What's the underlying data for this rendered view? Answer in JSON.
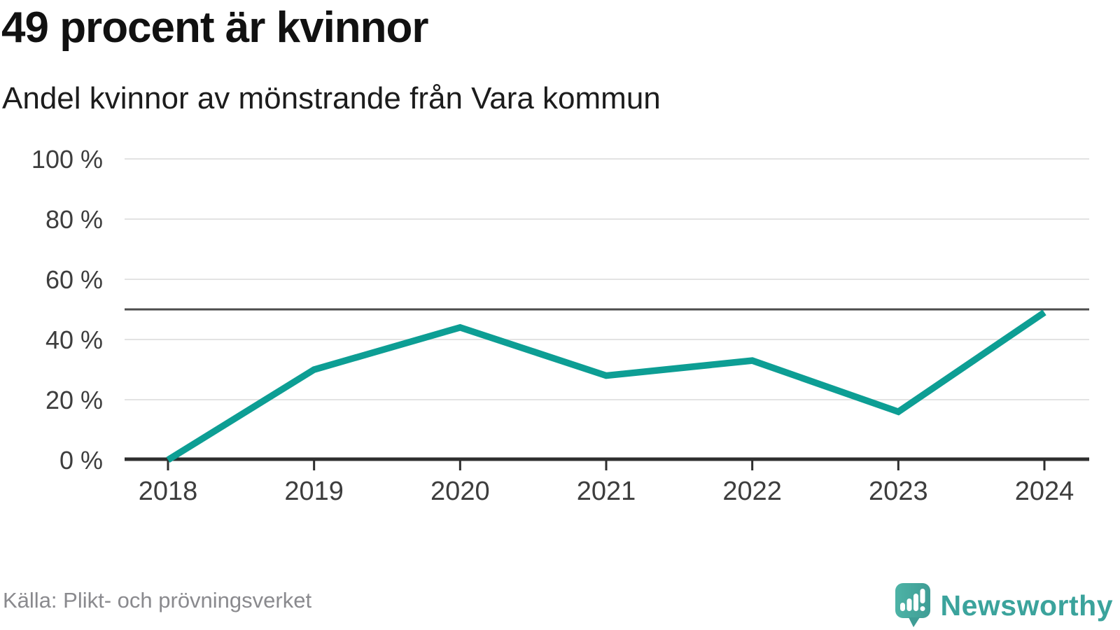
{
  "header": {
    "title": "49 procent är kvinnor",
    "subtitle": "Andel kvinnor av mönstrande från Vara kommun"
  },
  "footer": {
    "source": "Källa: Plikt- och prövningsverket",
    "brand": "Newsworthy"
  },
  "chart_data": {
    "type": "line",
    "title": "49 procent är kvinnor",
    "subtitle": "Andel kvinnor av mönstrande från Vara kommun",
    "source": "Källa: Plikt- och prövningsverket",
    "categories": [
      "2018",
      "2019",
      "2020",
      "2021",
      "2022",
      "2023",
      "2024"
    ],
    "values": [
      0,
      30,
      44,
      28,
      33,
      16,
      49
    ],
    "unit": "%",
    "ylim": [
      0,
      100
    ],
    "yticks": [
      0,
      20,
      40,
      60,
      80,
      100
    ],
    "ytick_labels": [
      "0 %",
      "20 %",
      "40 %",
      "60 %",
      "80 %",
      "100 %"
    ],
    "reference_line": 50,
    "grid": true,
    "legend": "none",
    "colors": {
      "line": "#0d9e94",
      "grid": "#e3e3e3",
      "reference": "#4d4d4d",
      "axis": "#2e2e2e",
      "tick_text": "#3d3d3d"
    }
  },
  "logo": {
    "icon": "newsworthy-logo-icon",
    "bubble_color_left": "#4db3a6",
    "bubble_color_right": "#3f9d95",
    "glyph_color": "#ffffff",
    "text_color": "#3ba39c"
  }
}
